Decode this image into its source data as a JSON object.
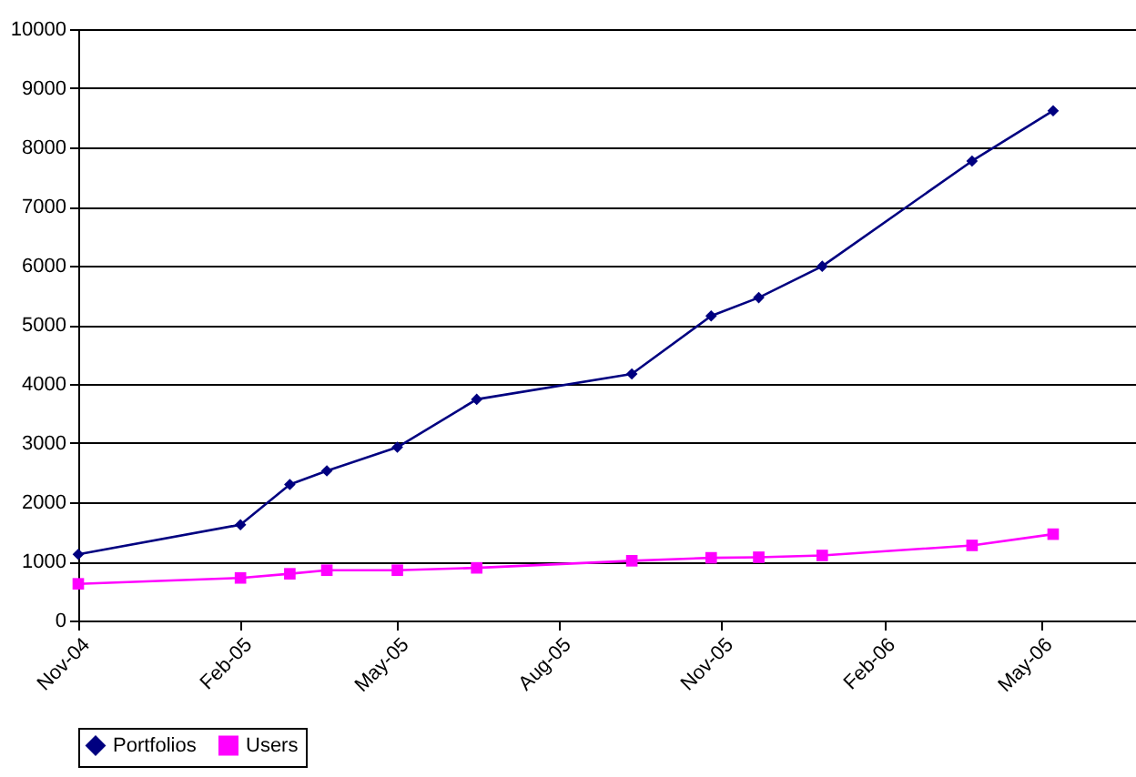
{
  "chart_data": {
    "type": "line",
    "x": [
      "2004-11-01",
      "2005-02-01",
      "2005-03-01",
      "2005-03-22",
      "2005-05-01",
      "2005-06-15",
      "2005-09-11",
      "2005-10-26",
      "2005-11-22",
      "2005-12-28",
      "2006-03-23",
      "2006-05-08"
    ],
    "series": [
      {
        "name": "Portfolios",
        "color": "#000080",
        "marker": "diamond",
        "values": [
          1120,
          1620,
          2300,
          2530,
          2930,
          3740,
          4170,
          5150,
          5460,
          5990,
          7770,
          8620
        ]
      },
      {
        "name": "Users",
        "color": "#ff00ff",
        "marker": "square",
        "values": [
          620,
          720,
          790,
          850,
          850,
          890,
          1010,
          1060,
          1070,
          1100,
          1270,
          1460
        ]
      }
    ],
    "xlim": [
      "2004-11-01",
      "2006-06-24"
    ],
    "xticks": [
      {
        "value": "2004-11-01",
        "label": "Nov-04"
      },
      {
        "value": "2005-02-01",
        "label": "Feb-05"
      },
      {
        "value": "2005-05-01",
        "label": "May-05"
      },
      {
        "value": "2005-08-01",
        "label": "Aug-05"
      },
      {
        "value": "2005-11-01",
        "label": "Nov-05"
      },
      {
        "value": "2006-02-01",
        "label": "Feb-06"
      },
      {
        "value": "2006-05-01",
        "label": "May-06"
      }
    ],
    "ylim": [
      0,
      10000
    ],
    "yticks": [
      0,
      1000,
      2000,
      3000,
      4000,
      5000,
      6000,
      7000,
      8000,
      9000,
      10000
    ],
    "grid": "y",
    "legend": "bottom"
  }
}
